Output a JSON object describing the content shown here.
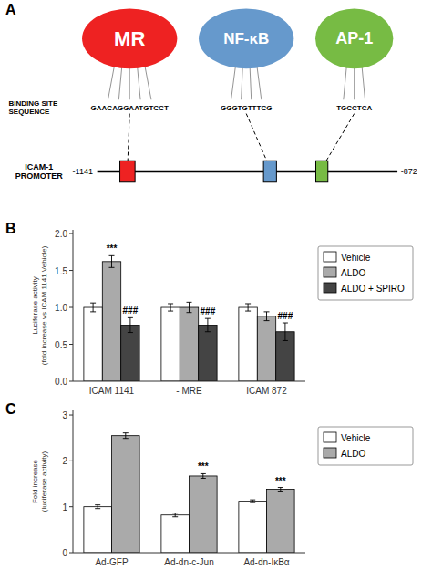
{
  "chart_data": [
    {
      "type": "diagram",
      "title": "A",
      "categories": [
        "MR",
        "NF-κB",
        "AP-1"
      ],
      "colors": [
        "#ee2222",
        "#6699cc",
        "#77bb44"
      ],
      "annotations": [
        "GAACAGGAATGTCCT",
        "GGGTGTTTCG",
        "TGCCTCA",
        "BINDING SITE\nSEQUENCE",
        "ICAM-1\nPROMOTER",
        "-1141",
        "-872"
      ]
    },
    {
      "type": "bar",
      "title": "B",
      "categories": [
        "ICAM 1141",
        "- MRE",
        "ICAM 872"
      ],
      "series": [
        {
          "name": "Vehicle",
          "color": "#ffffff",
          "values": [
            1.0,
            1.0,
            1.0
          ],
          "errors": [
            0.06,
            0.05,
            0.05
          ]
        },
        {
          "name": "ALDO",
          "color": "#aaaaaa",
          "values": [
            1.62,
            1.0,
            0.88
          ],
          "errors": [
            0.08,
            0.07,
            0.06
          ],
          "annotations": [
            "***",
            null,
            null
          ]
        },
        {
          "name": "ALDO + SPIRO",
          "color": "#444444",
          "values": [
            0.76,
            0.76,
            0.67
          ],
          "errors": [
            0.1,
            0.09,
            0.12
          ],
          "annotations": [
            "###",
            "###",
            "###"
          ]
        }
      ],
      "ylabel": "Luciferase activity\n(fold increase vs ICAM 1141 Vehicle)",
      "ylim": [
        0.0,
        2.05
      ],
      "yticks": [
        {
          "value": 0.0,
          "label": "0.0"
        },
        0.5,
        {
          "value": 1.0,
          "label": "1.0"
        },
        1.5,
        {
          "value": 2.0,
          "label": "2.0"
        }
      ],
      "legend": "right",
      "grid": false
    },
    {
      "type": "bar",
      "title": "C",
      "categories": [
        "Ad-GFP",
        "Ad-dn-c-Jun",
        "Ad-dn-IκBα"
      ],
      "series": [
        {
          "name": "Vehicle",
          "color": "#ffffff",
          "values": [
            1.0,
            0.82,
            1.12
          ],
          "errors": [
            0.04,
            0.04,
            0.03
          ]
        },
        {
          "name": "ALDO",
          "color": "#aaaaaa",
          "values": [
            2.55,
            1.67,
            1.38
          ],
          "errors": [
            0.06,
            0.05,
            0.04
          ],
          "annotations": [
            null,
            "***",
            "***"
          ]
        }
      ],
      "ylabel": "Fold increase\n(luciferase activity)",
      "ylim": [
        0,
        3.1
      ],
      "yticks": [
        0,
        1,
        2,
        3
      ],
      "legend": "right",
      "grid": false
    }
  ]
}
